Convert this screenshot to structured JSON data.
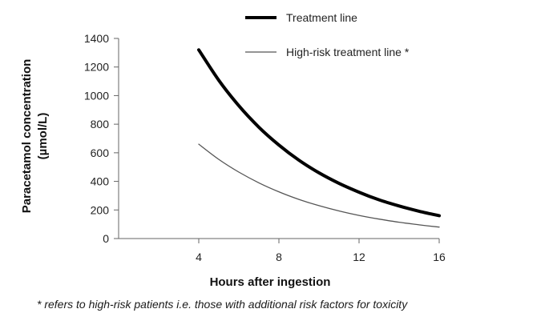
{
  "chart_data": {
    "type": "line",
    "xlabel": "Hours after ingestion",
    "ylabel_line1": "Paracetamol concentration",
    "ylabel_line2": "(µmol/L)",
    "xlim": [
      0,
      16
    ],
    "ylim": [
      0,
      1400
    ],
    "x_ticks": [
      4,
      8,
      12,
      16
    ],
    "y_ticks": [
      0,
      200,
      400,
      600,
      800,
      1000,
      1200,
      1400
    ],
    "grid": false,
    "legend_position": "top-right",
    "series": [
      {
        "name": "Treatment line",
        "color": "#000000",
        "style": "thick",
        "x": [
          4,
          5,
          6,
          7,
          8,
          9,
          10,
          11,
          12,
          13,
          14,
          15,
          16
        ],
        "y": [
          1320,
          1107,
          929,
          779,
          654,
          548,
          460,
          386,
          324,
          271,
          228,
          191,
          160
        ]
      },
      {
        "name": "High-risk treatment line *",
        "color": "#555555",
        "style": "thin",
        "x": [
          4,
          5,
          6,
          7,
          8,
          9,
          10,
          11,
          12,
          13,
          14,
          15,
          16
        ],
        "y": [
          660,
          554,
          465,
          390,
          327,
          274,
          230,
          193,
          162,
          136,
          114,
          96,
          80
        ]
      }
    ],
    "footnote": "* refers to high-risk patients i.e. those with additional risk factors for toxicity"
  }
}
